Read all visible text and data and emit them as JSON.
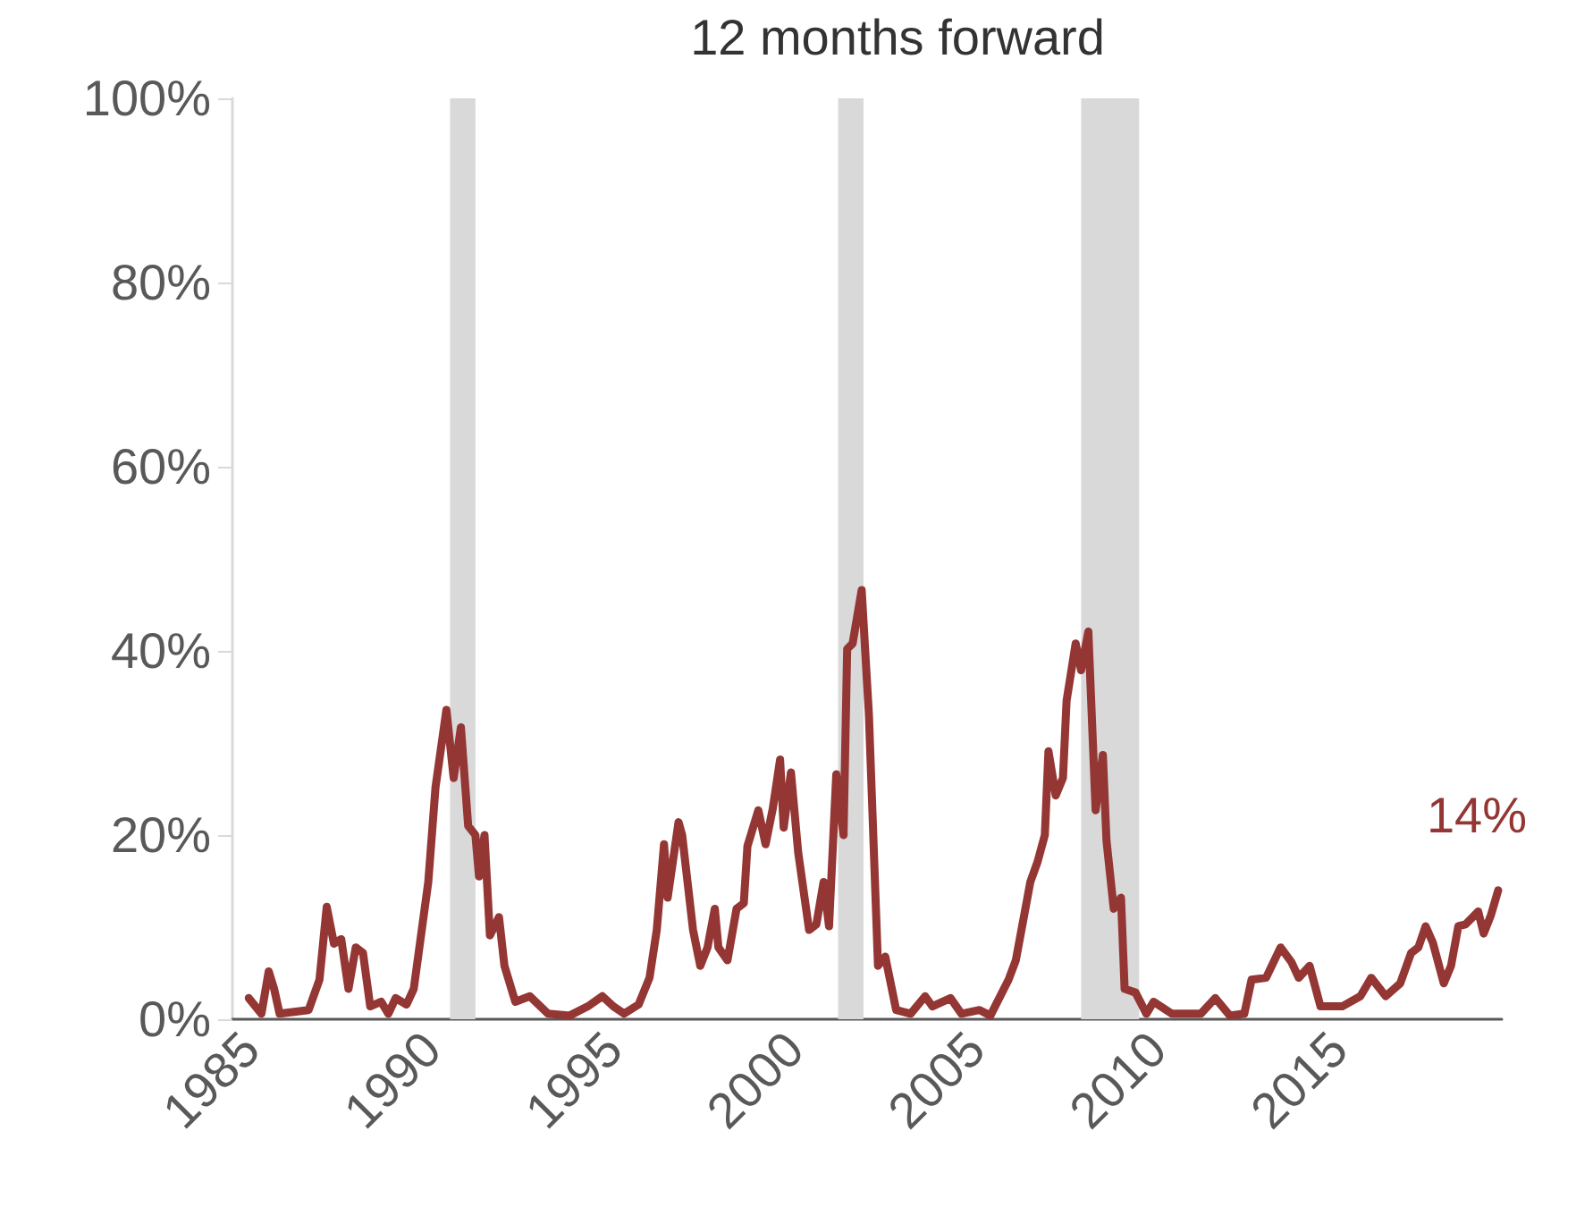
{
  "chart_data": {
    "type": "line",
    "title": "12 months forward",
    "x": [
      1984.95,
      1985.3,
      1985.5,
      1985.65,
      1985.8,
      1986.6,
      1986.9,
      1987.1,
      1987.3,
      1987.5,
      1987.7,
      1987.9,
      1988.1,
      1988.3,
      1988.6,
      1988.8,
      1989.0,
      1989.3,
      1989.5,
      1989.9,
      1990.1,
      1990.4,
      1990.6,
      1990.8,
      1991.0,
      1991.2,
      1991.3,
      1991.45,
      1991.6,
      1991.85,
      1992.0,
      1992.3,
      1992.7,
      1993.2,
      1993.8,
      1994.3,
      1994.7,
      1995.0,
      1995.3,
      1995.7,
      1996.0,
      1996.2,
      1996.4,
      1996.5,
      1996.8,
      1996.9,
      1997.2,
      1997.4,
      1997.6,
      1997.8,
      1997.9,
      1998.15,
      1998.4,
      1998.6,
      1998.7,
      1999.0,
      1999.2,
      1999.4,
      1999.6,
      1999.7,
      1999.9,
      2000.1,
      2000.4,
      2000.6,
      2000.8,
      2000.95,
      2001.15,
      2001.35,
      2001.45,
      2001.6,
      2001.85,
      2002.05,
      2002.3,
      2002.5,
      2002.8,
      2003.2,
      2003.6,
      2003.8,
      2004.3,
      2004.6,
      2005.1,
      2005.4,
      2005.9,
      2006.1,
      2006.5,
      2006.7,
      2006.9,
      2007.0,
      2007.2,
      2007.4,
      2007.5,
      2007.75,
      2007.9,
      2008.1,
      2008.3,
      2008.5,
      2008.6,
      2008.8,
      2009.0,
      2009.1,
      2009.4,
      2009.7,
      2009.9,
      2010.4,
      2011.2,
      2011.6,
      2012.0,
      2012.4,
      2012.6,
      2013.0,
      2013.4,
      2013.7,
      2013.9,
      2014.2,
      2014.5,
      2015.1,
      2015.6,
      2015.9,
      2016.3,
      2016.7,
      2017.0,
      2017.2,
      2017.4,
      2017.6,
      2017.9,
      2018.1,
      2018.3,
      2018.5,
      2018.85,
      2019.0,
      2019.2,
      2019.4
    ],
    "series": [
      {
        "color": "#943634",
        "values": [
          2.3,
          0.6,
          5.2,
          3.3,
          0.6,
          1.0,
          4.3,
          12.2,
          8.2,
          8.7,
          3.3,
          7.8,
          7.2,
          1.4,
          1.9,
          0.6,
          2.3,
          1.6,
          3.3,
          14.9,
          25.2,
          33.6,
          26.2,
          31.7,
          21.0,
          20.0,
          15.5,
          20.0,
          9.1,
          11.1,
          5.8,
          1.9,
          2.5,
          0.6,
          0.4,
          1.4,
          2.5,
          1.4,
          0.6,
          1.6,
          4.5,
          9.7,
          19.0,
          13.2,
          21.4,
          20.0,
          9.7,
          5.8,
          7.8,
          12.0,
          7.8,
          6.4,
          12.0,
          12.6,
          18.8,
          22.7,
          19.0,
          22.9,
          28.2,
          20.8,
          26.8,
          18.1,
          9.7,
          10.3,
          14.9,
          10.1,
          26.6,
          20.0,
          40.2,
          40.8,
          46.6,
          33.0,
          5.8,
          6.8,
          1.0,
          0.6,
          2.5,
          1.4,
          2.3,
          0.6,
          1.0,
          0.4,
          4.3,
          6.4,
          14.9,
          17.1,
          20.0,
          29.1,
          24.3,
          26.2,
          34.6,
          40.8,
          37.9,
          42.1,
          22.7,
          28.7,
          19.4,
          12.0,
          13.2,
          3.3,
          2.9,
          0.6,
          1.9,
          0.6,
          0.6,
          2.3,
          0.4,
          0.6,
          4.3,
          4.5,
          7.8,
          6.2,
          4.5,
          5.8,
          1.4,
          1.4,
          2.5,
          4.5,
          2.5,
          3.9,
          7.2,
          7.8,
          10.1,
          8.3,
          3.9,
          5.8,
          10.1,
          10.3,
          11.7,
          9.3,
          11.3,
          14.0
        ]
      }
    ],
    "xlim": [
      1984.5,
      2019.5
    ],
    "xticks": [
      1985,
      1990,
      1995,
      2000,
      2005,
      2010,
      2015
    ],
    "ylim": [
      0,
      100
    ],
    "yticks": [
      {
        "value": 0,
        "label": "0%"
      },
      {
        "value": 20,
        "label": "20%"
      },
      {
        "value": 40,
        "label": "40%"
      },
      {
        "value": 60,
        "label": "60%"
      },
      {
        "value": 80,
        "label": "80%"
      },
      {
        "value": 100,
        "label": "100%"
      }
    ],
    "bands": [
      {
        "axis": "x",
        "from": 1990.5,
        "to": 1991.2,
        "color": "#d9d9d9"
      },
      {
        "axis": "x",
        "from": 2001.2,
        "to": 2001.9,
        "color": "#d9d9d9"
      },
      {
        "axis": "x",
        "from": 2007.9,
        "to": 2009.5,
        "color": "#d9d9d9"
      }
    ],
    "annotations": [
      {
        "text": "14%",
        "x": 2019.4,
        "y": 14
      }
    ],
    "grid": false,
    "marker": "none",
    "line_style": "solid"
  }
}
